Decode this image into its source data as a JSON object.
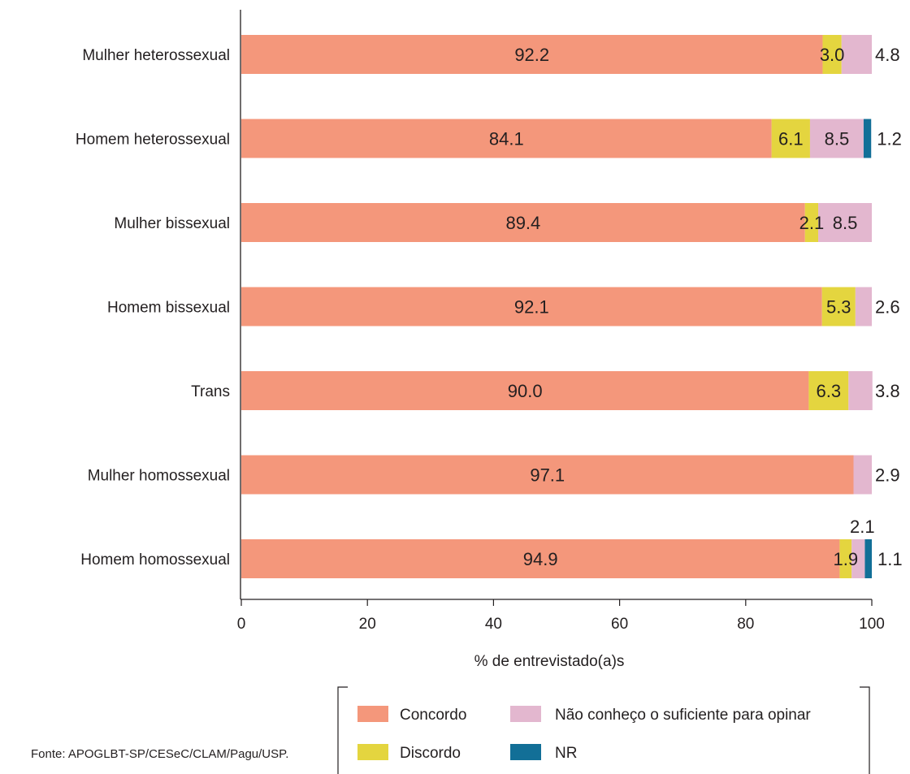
{
  "chart_data": {
    "type": "bar",
    "orientation": "horizontal",
    "stacked": true,
    "categories": [
      "Mulher heterossexual",
      "Homem heterossexual",
      "Mulher bissexual",
      "Homem bissexual",
      "Trans",
      "Mulher homossexual",
      "Homem homossexual"
    ],
    "series": [
      {
        "name": "Concordo",
        "color": "#f4977b",
        "values": [
          92.2,
          84.1,
          89.4,
          92.1,
          90.0,
          97.1,
          94.9
        ]
      },
      {
        "name": "Discordo",
        "color": "#e4d53f",
        "values": [
          3.0,
          6.1,
          2.1,
          5.3,
          6.3,
          0,
          1.9
        ]
      },
      {
        "name": "Não conheço o suficiente para opinar",
        "color": "#e3b7cf",
        "values": [
          4.8,
          8.5,
          8.5,
          2.6,
          3.8,
          2.9,
          2.1
        ]
      },
      {
        "name": "NR",
        "color": "#126f97",
        "values": [
          0,
          1.2,
          0,
          0,
          0,
          0,
          1.1
        ]
      }
    ],
    "data_labels": [
      [
        "92.2",
        "3.0",
        "4.8",
        ""
      ],
      [
        "84.1",
        "6.1",
        "8.5",
        "1.2"
      ],
      [
        "89.4",
        "2.1",
        "8.5",
        ""
      ],
      [
        "92.1",
        "5.3",
        "2.6",
        ""
      ],
      [
        "90.0",
        "6.3",
        "3.8",
        ""
      ],
      [
        "97.1",
        "",
        "2.9",
        ""
      ],
      [
        "94.9",
        "1.9",
        "2.1",
        "1.1"
      ]
    ],
    "xlabel": "% de entrevistado(a)s",
    "xlim": [
      0,
      100
    ],
    "xticks": [
      0,
      20,
      40,
      60,
      80,
      100
    ],
    "grid": false,
    "legend_position": "bottom"
  },
  "source_note": "Fonte: APOGLBT-SP/CESeC/CLAM/Pagu/USP."
}
